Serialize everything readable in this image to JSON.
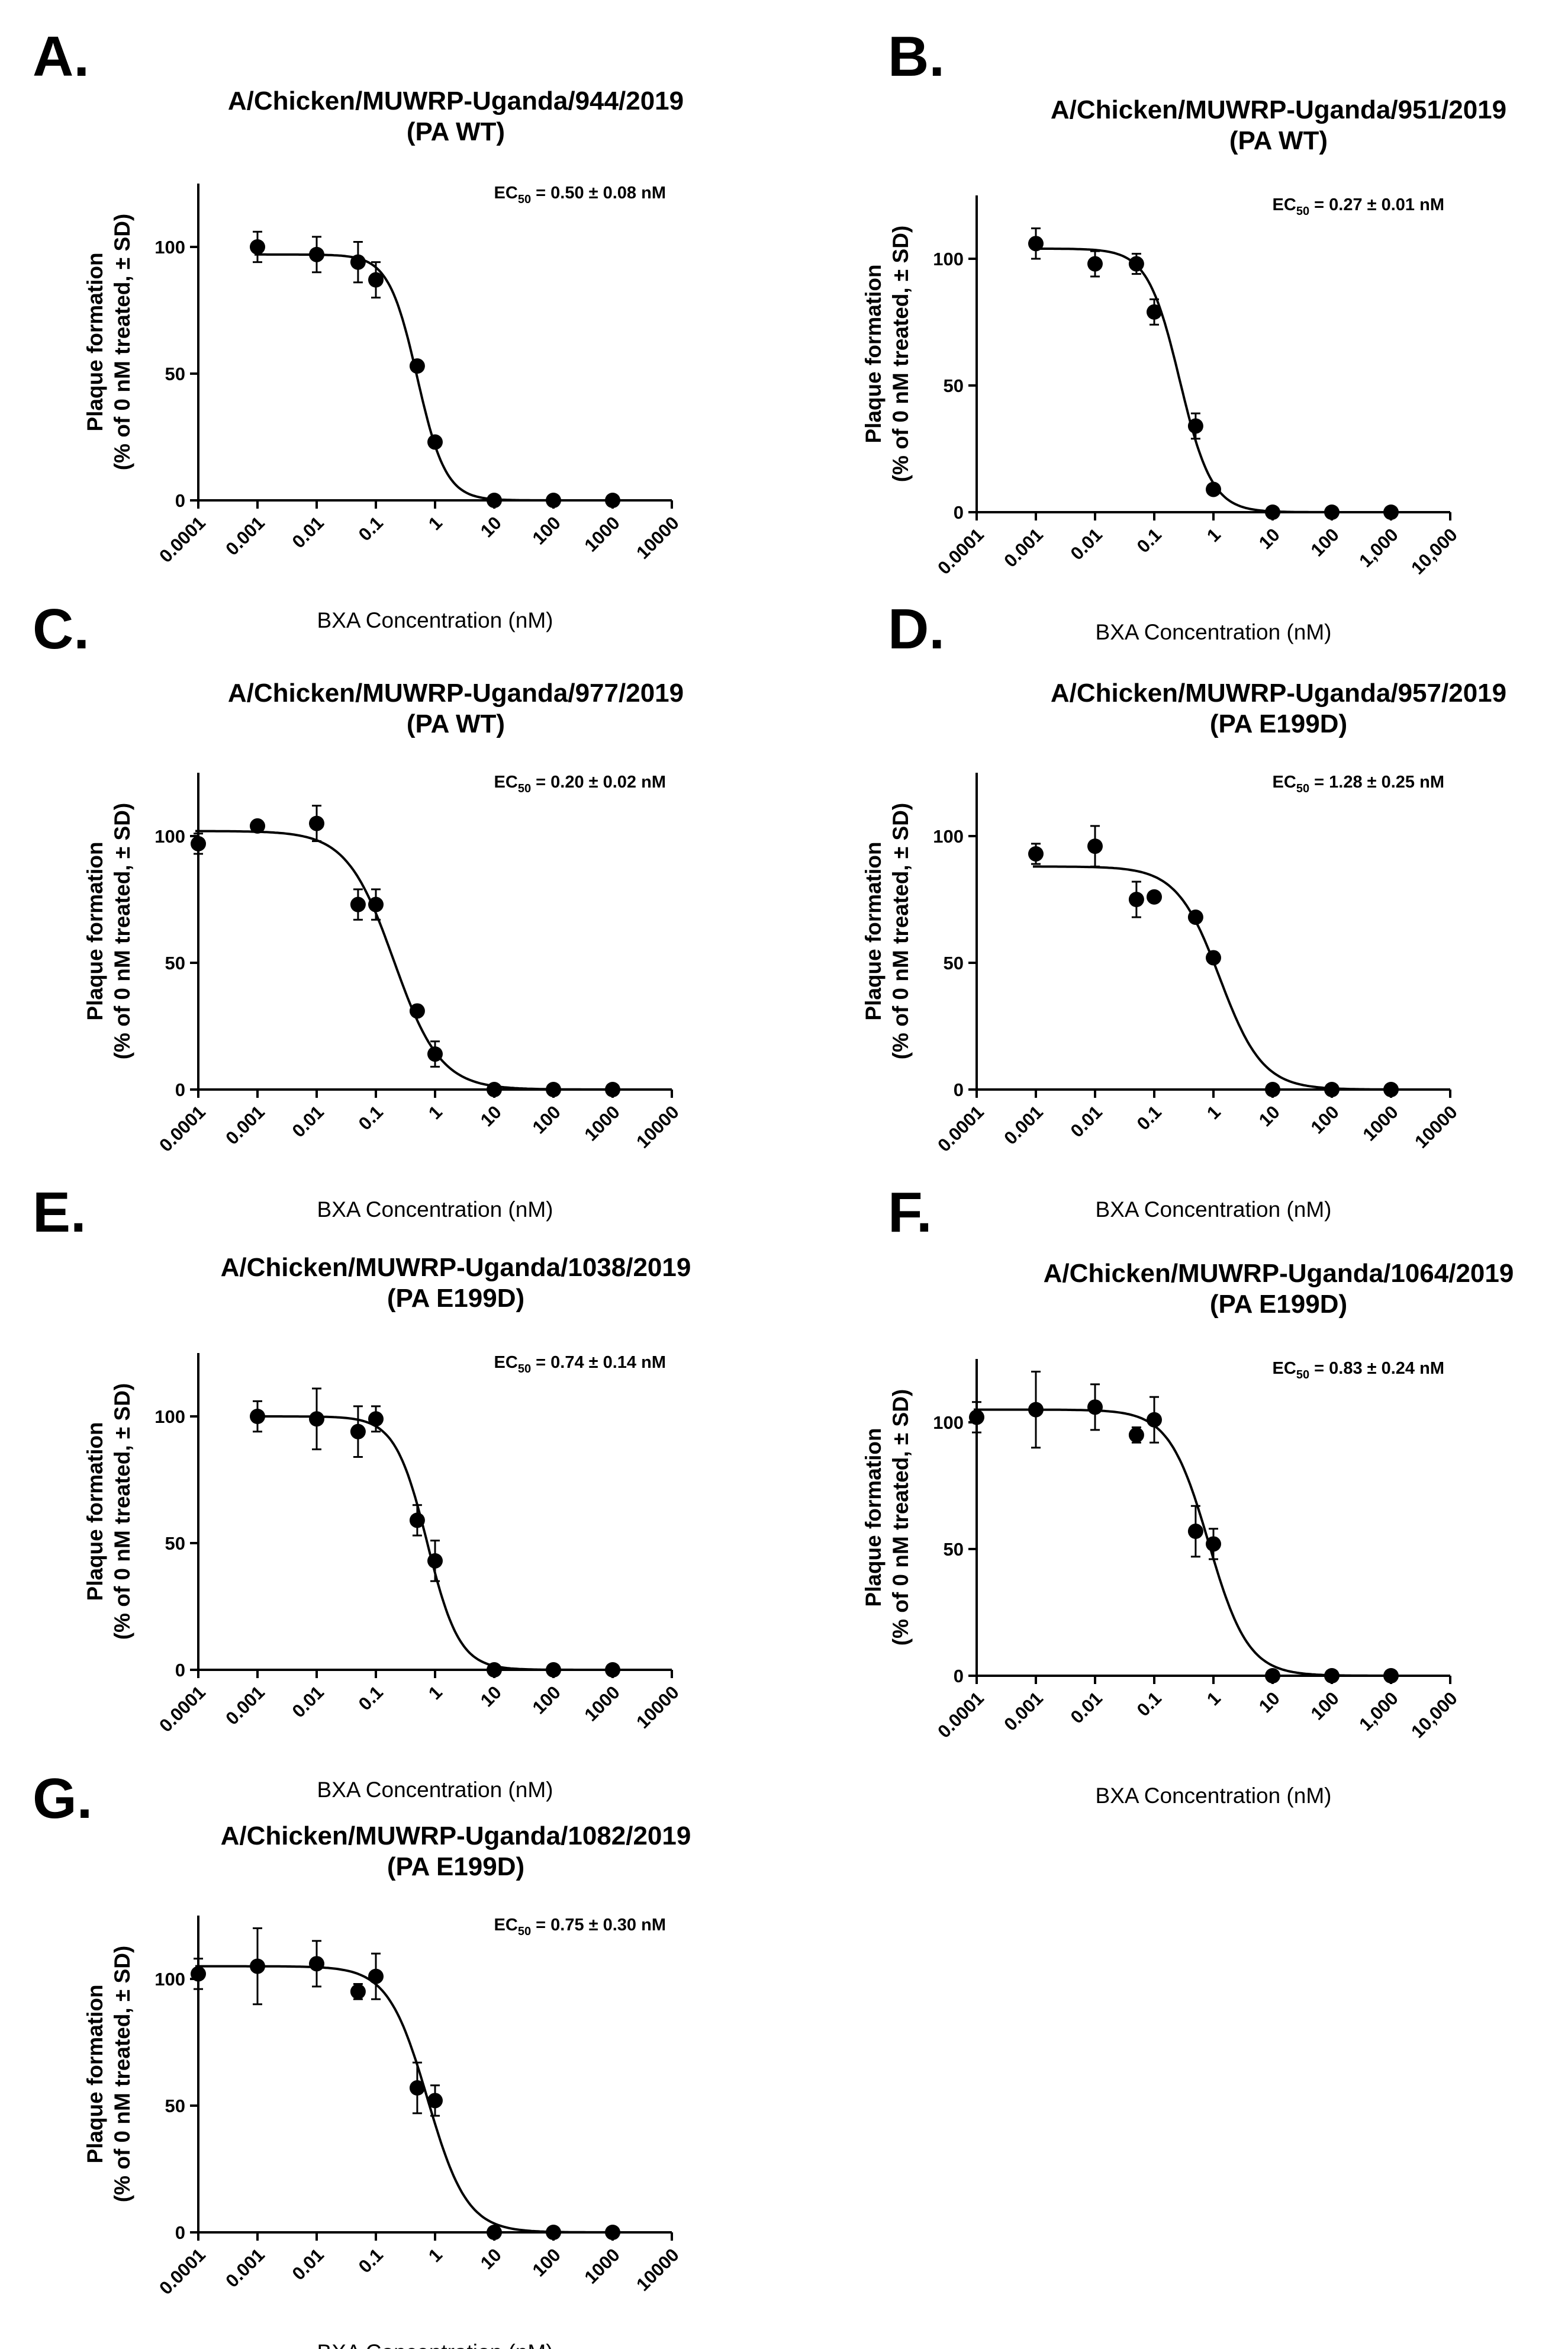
{
  "chart_data": [
    {
      "type": "scatter",
      "panel_label": "A.",
      "title": "A/Chicken/MUWRP-Uganda/944/2019",
      "subtitle": "(PA WT)",
      "xlabel": "BXA Concentration (nM)",
      "ylabel": [
        "Plaque formation",
        "(% of 0 nM treated, ± SD)"
      ],
      "x_scale": "log",
      "xlim": [
        0.0001,
        10000
      ],
      "ylim": [
        0,
        125
      ],
      "x_ticks": [
        "0.0001",
        "0.001",
        "0.01",
        "0.1",
        "1",
        "10",
        "100",
        "1000",
        "10000"
      ],
      "y_ticks": [
        "0",
        "50",
        "100"
      ],
      "ec50": {
        "prefix": "EC",
        "sub": "50",
        "value": " = 0.50 ± 0.08 nM"
      },
      "fit": {
        "top": 97,
        "bottom": 0,
        "ec50": 0.5,
        "hill": 1.8
      },
      "points": [
        {
          "x": 0.001,
          "y": 100,
          "err": 6
        },
        {
          "x": 0.01,
          "y": 97,
          "err": 7
        },
        {
          "x": 0.05,
          "y": 94,
          "err": 8
        },
        {
          "x": 0.1,
          "y": 87,
          "err": 7
        },
        {
          "x": 0.5,
          "y": 53,
          "err": 2
        },
        {
          "x": 1,
          "y": 23,
          "err": 2
        },
        {
          "x": 10,
          "y": 0,
          "err": 0
        },
        {
          "x": 100,
          "y": 0,
          "err": 0
        },
        {
          "x": 1000,
          "y": 0,
          "err": 0
        }
      ]
    },
    {
      "type": "scatter",
      "panel_label": "B.",
      "title": "A/Chicken/MUWRP-Uganda/951/2019",
      "subtitle": "(PA WT)",
      "xlabel": "BXA Concentration (nM)",
      "ylabel": [
        "Plaque formation",
        "(% of 0 nM treated, ± SD)"
      ],
      "x_scale": "log",
      "xlim": [
        0.0001,
        10000
      ],
      "ylim": [
        0,
        125
      ],
      "x_ticks": [
        "0.0001",
        "0.001",
        "0.01",
        "0.1",
        "1",
        "10",
        "100",
        "1,000",
        "10,000"
      ],
      "y_ticks": [
        "0",
        "50",
        "100"
      ],
      "ec50": {
        "prefix": "EC",
        "sub": "50",
        "value": " = 0.27 ± 0.01 nM"
      },
      "fit": {
        "top": 104,
        "bottom": 0,
        "ec50": 0.27,
        "hill": 1.6
      },
      "points": [
        {
          "x": 0.001,
          "y": 106,
          "err": 6
        },
        {
          "x": 0.01,
          "y": 98,
          "err": 5
        },
        {
          "x": 0.05,
          "y": 98,
          "err": 4
        },
        {
          "x": 0.1,
          "y": 79,
          "err": 5
        },
        {
          "x": 0.5,
          "y": 34,
          "err": 5
        },
        {
          "x": 1,
          "y": 9,
          "err": 2
        },
        {
          "x": 10,
          "y": 0,
          "err": 0
        },
        {
          "x": 100,
          "y": 0,
          "err": 0
        },
        {
          "x": 1000,
          "y": 0,
          "err": 0
        }
      ]
    },
    {
      "type": "scatter",
      "panel_label": "C.",
      "title": "A/Chicken/MUWRP-Uganda/977/2019",
      "subtitle": "(PA WT)",
      "xlabel": "BXA Concentration (nM)",
      "ylabel": [
        "Plaque formation",
        "(% of 0 nM treated, ± SD)"
      ],
      "x_scale": "log",
      "xlim": [
        0.0001,
        10000
      ],
      "ylim": [
        0,
        125
      ],
      "x_ticks": [
        "0.0001",
        "0.001",
        "0.01",
        "0.1",
        "1",
        "10",
        "100",
        "1000",
        "10000"
      ],
      "y_ticks": [
        "0",
        "50",
        "100"
      ],
      "ec50": {
        "prefix": "EC",
        "sub": "50",
        "value": " = 0.20 ± 0.02 nM"
      },
      "fit": {
        "top": 102,
        "bottom": 0,
        "ec50": 0.2,
        "hill": 1.1
      },
      "points": [
        {
          "x": 0.0001,
          "y": 97,
          "err": 4
        },
        {
          "x": 0.001,
          "y": 104,
          "err": 2
        },
        {
          "x": 0.01,
          "y": 105,
          "err": 7
        },
        {
          "x": 0.05,
          "y": 73,
          "err": 6
        },
        {
          "x": 0.1,
          "y": 73,
          "err": 6
        },
        {
          "x": 0.5,
          "y": 31,
          "err": 2
        },
        {
          "x": 1,
          "y": 14,
          "err": 5
        },
        {
          "x": 10,
          "y": 0,
          "err": 0
        },
        {
          "x": 100,
          "y": 0,
          "err": 0
        },
        {
          "x": 1000,
          "y": 0,
          "err": 0
        }
      ]
    },
    {
      "type": "scatter",
      "panel_label": "D.",
      "title": "A/Chicken/MUWRP-Uganda/957/2019",
      "subtitle": "(PA E199D)",
      "xlabel": "BXA Concentration (nM)",
      "ylabel": [
        "Plaque formation",
        "(% of 0 nM treated, ± SD)"
      ],
      "x_scale": "log",
      "xlim": [
        0.0001,
        10000
      ],
      "ylim": [
        0,
        125
      ],
      "x_ticks": [
        "0.0001",
        "0.001",
        "0.01",
        "0.1",
        "1",
        "10",
        "100",
        "1000",
        "10000"
      ],
      "y_ticks": [
        "0",
        "50",
        "100"
      ],
      "ec50": {
        "prefix": "EC",
        "sub": "50",
        "value": " = 1.28 ± 0.25 nM"
      },
      "fit": {
        "top": 88,
        "bottom": 0,
        "ec50": 1.28,
        "hill": 1.2
      },
      "points": [
        {
          "x": 0.001,
          "y": 93,
          "err": 4
        },
        {
          "x": 0.01,
          "y": 96,
          "err": 8
        },
        {
          "x": 0.05,
          "y": 75,
          "err": 7
        },
        {
          "x": 0.1,
          "y": 76,
          "err": 2
        },
        {
          "x": 0.5,
          "y": 68,
          "err": 2
        },
        {
          "x": 1,
          "y": 52,
          "err": 2
        },
        {
          "x": 10,
          "y": 0,
          "err": 0
        },
        {
          "x": 100,
          "y": 0,
          "err": 0
        },
        {
          "x": 1000,
          "y": 0,
          "err": 0
        }
      ]
    },
    {
      "type": "scatter",
      "panel_label": "E.",
      "title": "A/Chicken/MUWRP-Uganda/1038/2019",
      "subtitle": "(PA E199D)",
      "xlabel": "BXA Concentration (nM)",
      "ylabel": [
        "Plaque formation",
        "(% of 0 nM treated, ± SD)"
      ],
      "x_scale": "log",
      "xlim": [
        0.0001,
        10000
      ],
      "ylim": [
        0,
        125
      ],
      "x_ticks": [
        "0.0001",
        "0.001",
        "0.01",
        "0.1",
        "1",
        "10",
        "100",
        "1000",
        "10000"
      ],
      "y_ticks": [
        "0",
        "50",
        "100"
      ],
      "ec50": {
        "prefix": "EC",
        "sub": "50",
        "value": " = 0.74 ± 0.14 nM"
      },
      "fit": {
        "top": 100,
        "bottom": 0,
        "ec50": 0.74,
        "hill": 1.6
      },
      "points": [
        {
          "x": 0.001,
          "y": 100,
          "err": 6
        },
        {
          "x": 0.01,
          "y": 99,
          "err": 12
        },
        {
          "x": 0.05,
          "y": 94,
          "err": 10
        },
        {
          "x": 0.1,
          "y": 99,
          "err": 5
        },
        {
          "x": 0.5,
          "y": 59,
          "err": 6
        },
        {
          "x": 1,
          "y": 43,
          "err": 8
        },
        {
          "x": 10,
          "y": 0,
          "err": 0
        },
        {
          "x": 100,
          "y": 0,
          "err": 0
        },
        {
          "x": 1000,
          "y": 0,
          "err": 0
        }
      ]
    },
    {
      "type": "scatter",
      "panel_label": "F.",
      "title": "A/Chicken/MUWRP-Uganda/1064/2019",
      "subtitle": "(PA E199D)",
      "xlabel": "BXA Concentration (nM)",
      "ylabel": [
        "Plaque formation",
        "(% of 0 nM treated, ± SD)"
      ],
      "x_scale": "log",
      "xlim": [
        0.0001,
        10000
      ],
      "ylim": [
        0,
        125
      ],
      "x_ticks": [
        "0.0001",
        "0.001",
        "0.01",
        "0.1",
        "1",
        "10",
        "100",
        "1,000",
        "10,000"
      ],
      "y_ticks": [
        "0",
        "50",
        "100"
      ],
      "ec50": {
        "prefix": "EC",
        "sub": "50",
        "value": " = 0.83 ± 0.24 nM"
      },
      "fit": {
        "top": 105,
        "bottom": 0,
        "ec50": 0.83,
        "hill": 1.3
      },
      "points": [
        {
          "x": 0.0001,
          "y": 102,
          "err": 6
        },
        {
          "x": 0.001,
          "y": 105,
          "err": 15
        },
        {
          "x": 0.01,
          "y": 106,
          "err": 9
        },
        {
          "x": 0.05,
          "y": 95,
          "err": 3
        },
        {
          "x": 0.1,
          "y": 101,
          "err": 9
        },
        {
          "x": 0.5,
          "y": 57,
          "err": 10
        },
        {
          "x": 1,
          "y": 52,
          "err": 6
        },
        {
          "x": 10,
          "y": 0,
          "err": 0
        },
        {
          "x": 100,
          "y": 0,
          "err": 0
        },
        {
          "x": 1000,
          "y": 0,
          "err": 0
        }
      ]
    },
    {
      "type": "scatter",
      "panel_label": "G.",
      "title": "A/Chicken/MUWRP-Uganda/1082/2019",
      "subtitle": "(PA E199D)",
      "xlabel": "BXA Concentration (nM)",
      "ylabel": [
        "Plaque formation",
        "(% of 0 nM treated, ± SD)"
      ],
      "x_scale": "log",
      "xlim": [
        0.0001,
        10000
      ],
      "ylim": [
        0,
        125
      ],
      "x_ticks": [
        "0.0001",
        "0.001",
        "0.01",
        "0.1",
        "1",
        "10",
        "100",
        "1000",
        "10000"
      ],
      "y_ticks": [
        "0",
        "50",
        "100"
      ],
      "ec50": {
        "prefix": "EC",
        "sub": "50",
        "value": " = 0.75 ± 0.30 nM"
      },
      "fit": {
        "top": 105,
        "bottom": 0,
        "ec50": 0.75,
        "hill": 1.3
      },
      "points": [
        {
          "x": 0.0001,
          "y": 102,
          "err": 6
        },
        {
          "x": 0.001,
          "y": 105,
          "err": 15
        },
        {
          "x": 0.01,
          "y": 106,
          "err": 9
        },
        {
          "x": 0.05,
          "y": 95,
          "err": 3
        },
        {
          "x": 0.1,
          "y": 101,
          "err": 9
        },
        {
          "x": 0.5,
          "y": 57,
          "err": 10
        },
        {
          "x": 1,
          "y": 52,
          "err": 6
        },
        {
          "x": 10,
          "y": 0,
          "err": 0
        },
        {
          "x": 100,
          "y": 0,
          "err": 0
        },
        {
          "x": 1000,
          "y": 0,
          "err": 0
        }
      ]
    }
  ]
}
